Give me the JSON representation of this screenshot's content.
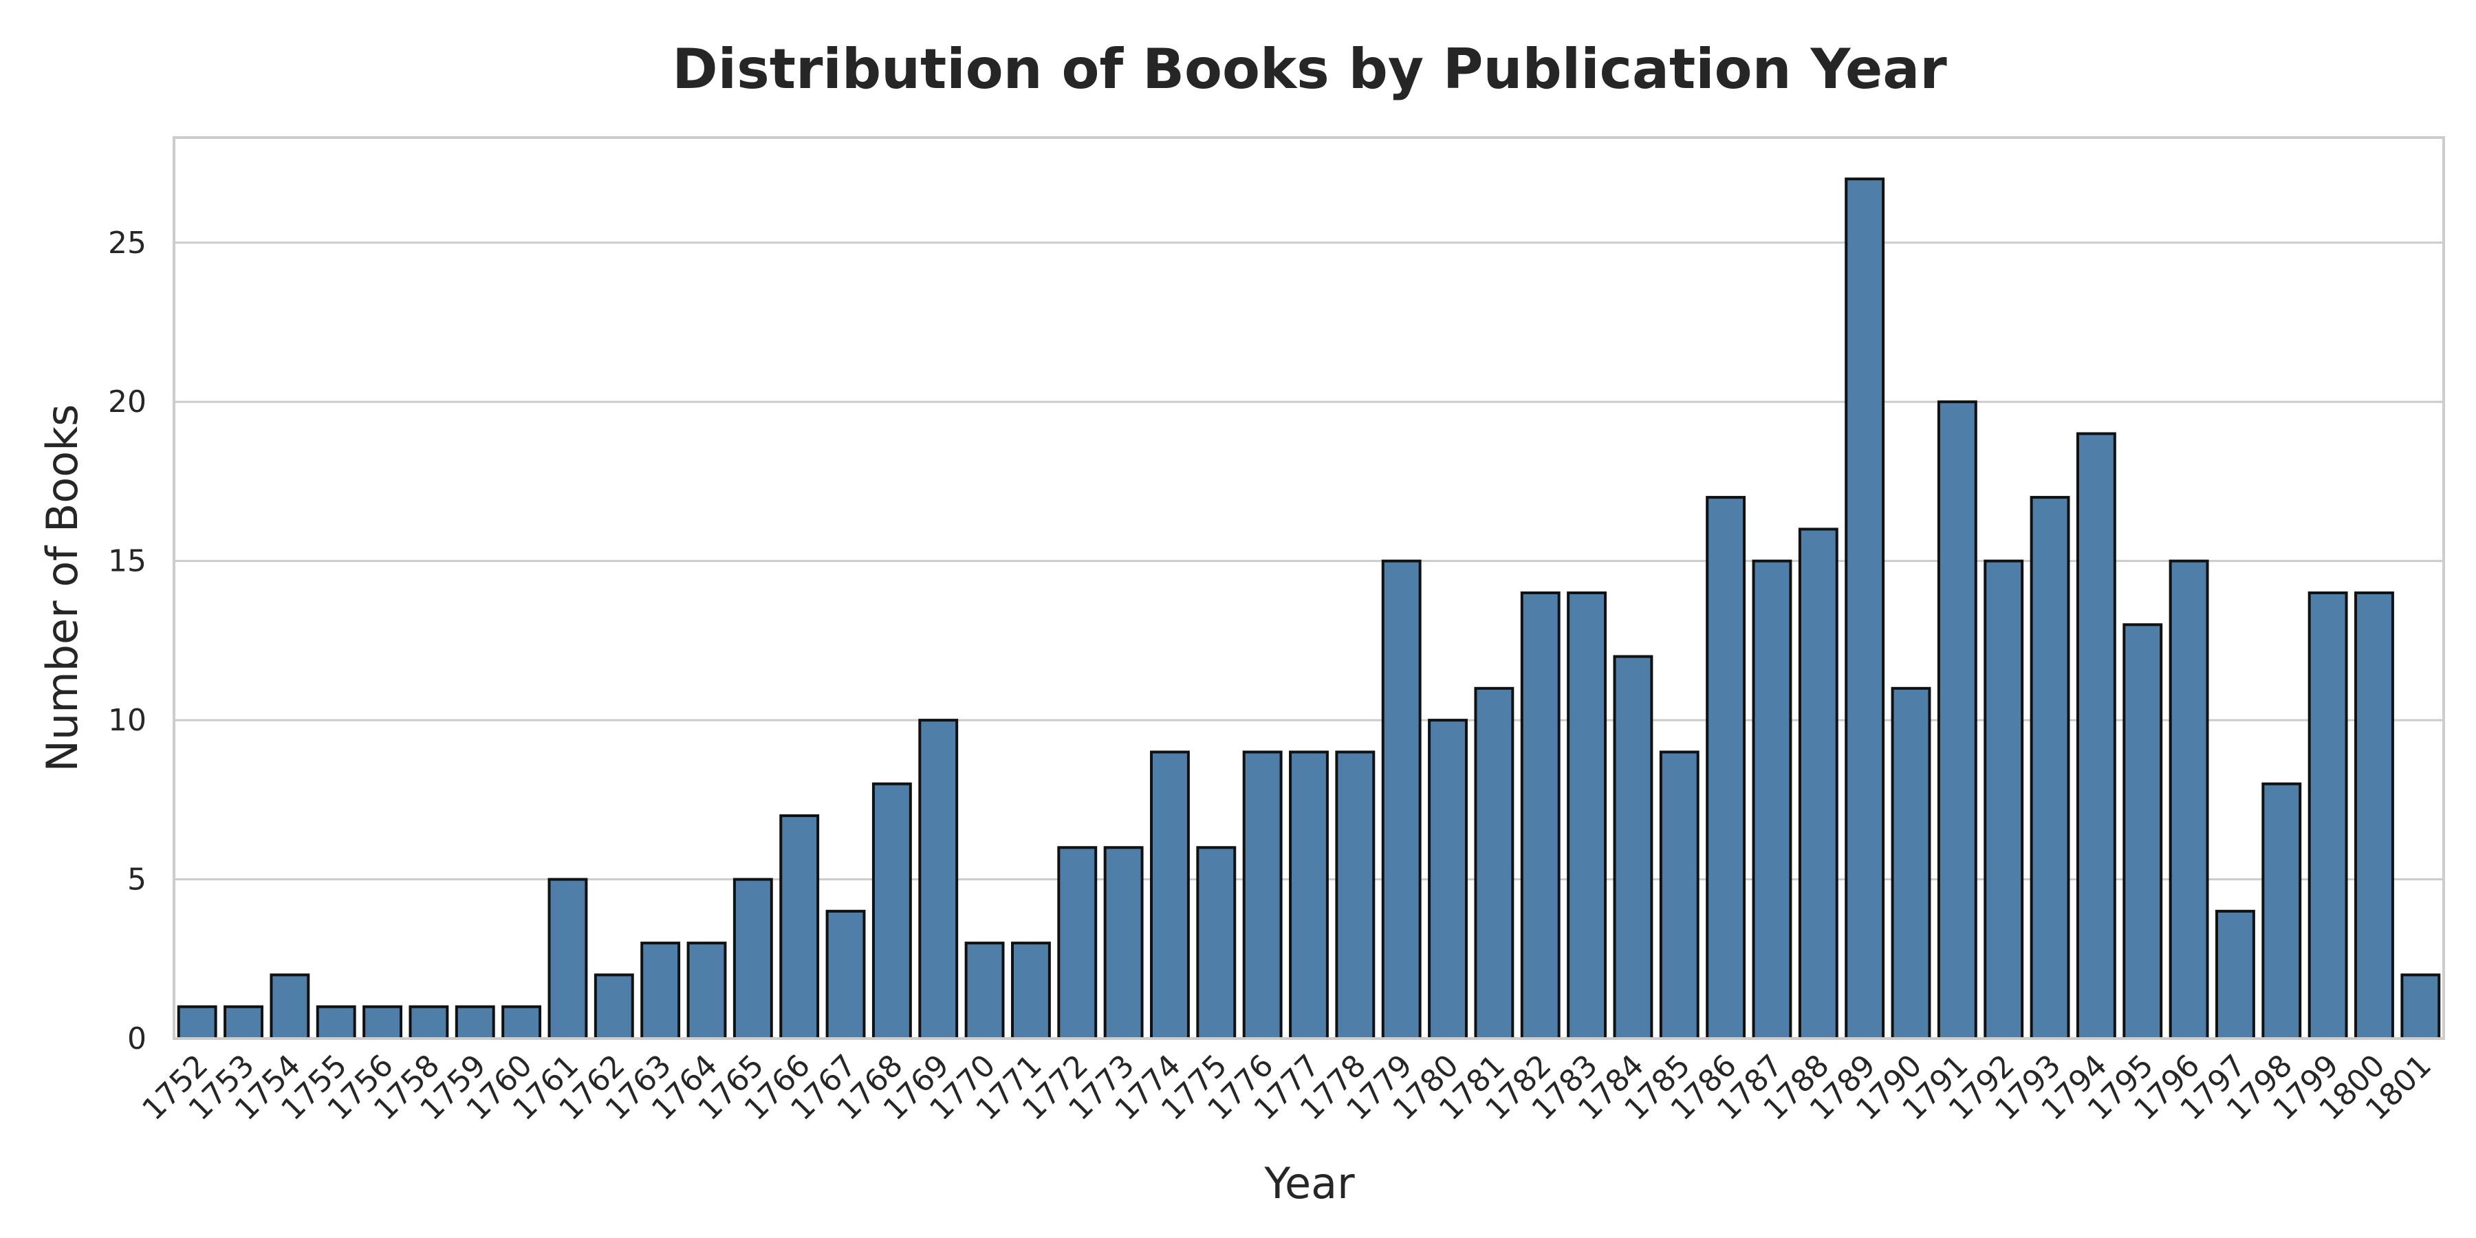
{
  "chart_data": {
    "type": "bar",
    "title": "Distribution of Books by Publication Year",
    "xlabel": "Year",
    "ylabel": "Number of Books",
    "ylim": [
      0,
      28.3
    ],
    "yticks": [
      0,
      5,
      10,
      15,
      20,
      25
    ],
    "grid": "horizontal",
    "bar_color": "#4f7ea8",
    "categories": [
      "1752",
      "1753",
      "1754",
      "1755",
      "1756",
      "1758",
      "1759",
      "1760",
      "1761",
      "1762",
      "1763",
      "1764",
      "1765",
      "1766",
      "1767",
      "1768",
      "1769",
      "1770",
      "1771",
      "1772",
      "1773",
      "1774",
      "1775",
      "1776",
      "1777",
      "1778",
      "1779",
      "1780",
      "1781",
      "1782",
      "1783",
      "1784",
      "1785",
      "1786",
      "1787",
      "1788",
      "1789",
      "1790",
      "1791",
      "1792",
      "1793",
      "1794",
      "1795",
      "1796",
      "1797",
      "1798",
      "1799",
      "1800",
      "1801"
    ],
    "values": [
      1,
      1,
      2,
      1,
      1,
      1,
      1,
      1,
      5,
      2,
      3,
      3,
      5,
      7,
      4,
      8,
      10,
      3,
      3,
      6,
      6,
      9,
      6,
      9,
      9,
      9,
      15,
      10,
      11,
      14,
      14,
      12,
      9,
      17,
      15,
      16,
      27,
      11,
      20,
      15,
      17,
      19,
      13,
      15,
      4,
      8,
      14,
      14,
      2
    ]
  }
}
